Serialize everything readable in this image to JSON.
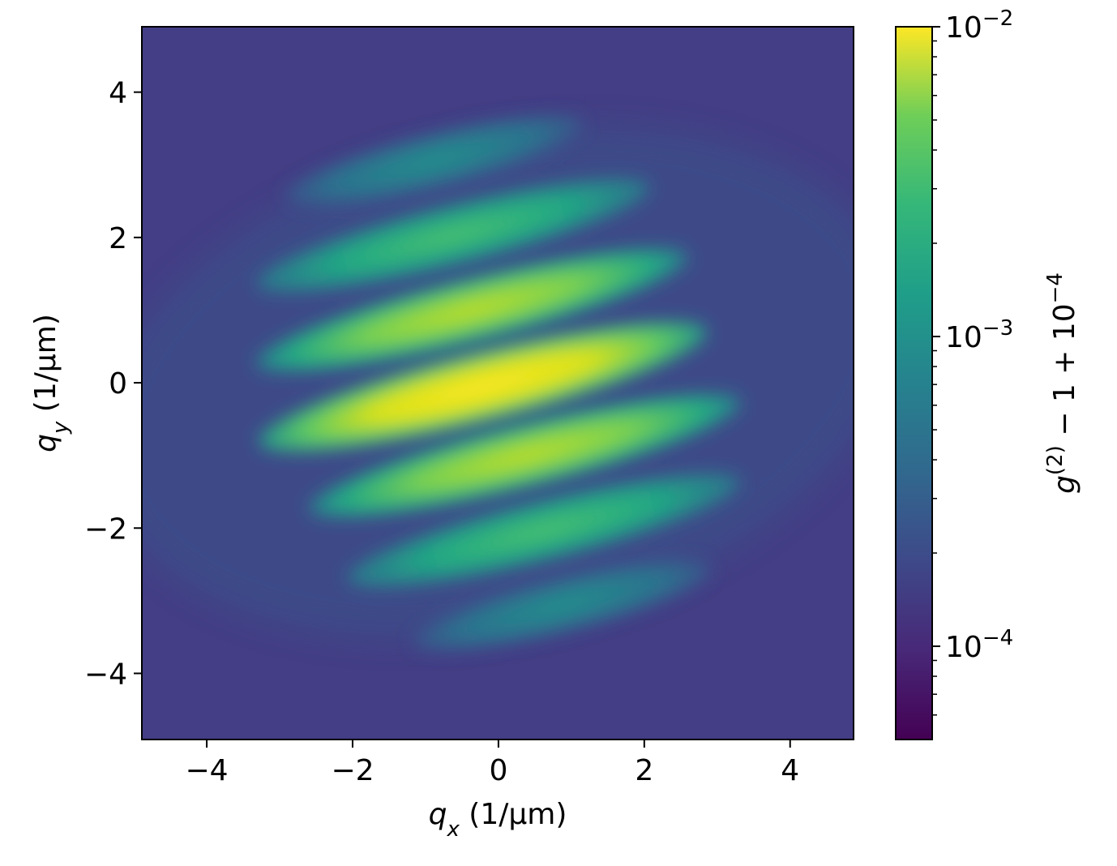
{
  "chart_data": {
    "type": "heatmap",
    "colormap": "viridis",
    "xlabel": [
      {
        "text": "q",
        "italic": true
      },
      {
        "text": "x",
        "italic": true,
        "pos": "sub"
      },
      {
        "text": " (1/μm)"
      }
    ],
    "ylabel": [
      {
        "text": "q",
        "italic": true
      },
      {
        "text": "y",
        "italic": true,
        "pos": "sub"
      },
      {
        "text": " (1/μm)"
      }
    ],
    "xlim": [
      -4.89,
      4.87
    ],
    "ylim": [
      -4.91,
      4.9
    ],
    "xticks": [
      {
        "value": -4,
        "label": "−4"
      },
      {
        "value": -2,
        "label": "−2"
      },
      0,
      2,
      4
    ],
    "yticks": [
      {
        "value": -4,
        "label": "−4"
      },
      {
        "value": -2,
        "label": "−2"
      },
      0,
      2,
      4
    ],
    "colorbar": {
      "scale": "log",
      "lim": [
        5e-05,
        0.01
      ],
      "ticks": [
        {
          "value": 0.0001,
          "label": [
            {
              "text": "10"
            },
            {
              "text": "−4",
              "pos": "sup"
            }
          ]
        },
        {
          "value": 0.001,
          "label": [
            {
              "text": "10"
            },
            {
              "text": "−3",
              "pos": "sup"
            }
          ]
        },
        {
          "value": 0.01,
          "label": [
            {
              "text": "10"
            },
            {
              "text": "−2",
              "pos": "sup"
            }
          ]
        }
      ],
      "minor_ticks": [
        6e-05,
        7e-05,
        8e-05,
        9e-05,
        0.0002,
        0.0003,
        0.0004,
        0.0005,
        0.0006,
        0.0007,
        0.0008,
        0.0009,
        0.002,
        0.003,
        0.004,
        0.005,
        0.006,
        0.007,
        0.008,
        0.009
      ],
      "label": [
        {
          "text": "g",
          "italic": true
        },
        {
          "text": "(2)",
          "pos": "sup"
        },
        {
          "text": " − 1 + 10"
        },
        {
          "text": "−4",
          "pos": "sup"
        }
      ]
    }
  }
}
